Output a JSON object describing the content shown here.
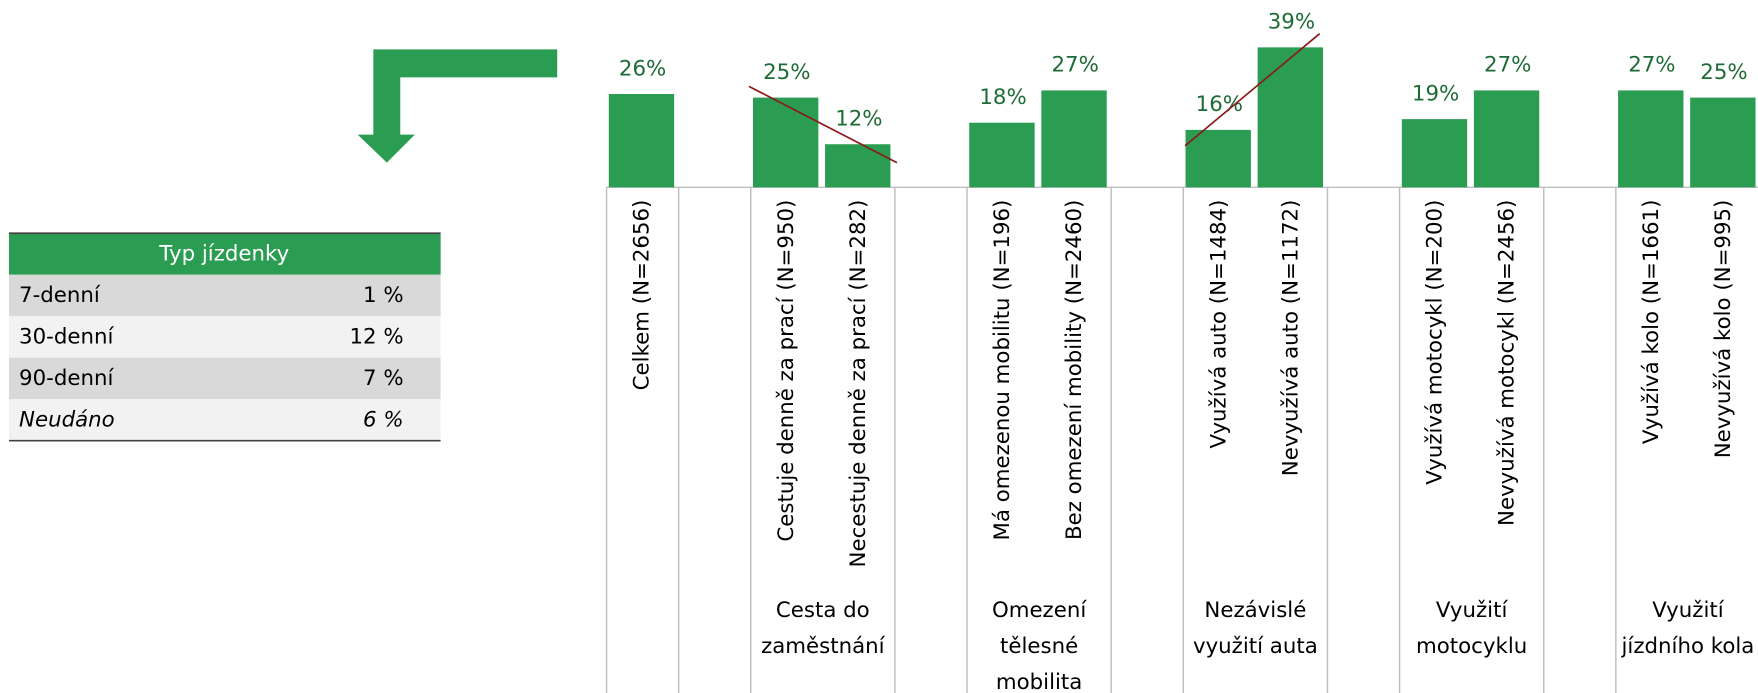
{
  "chart_data": {
    "type": "bar",
    "categories": [
      "Celkem (N=2656)",
      "Cestuje denně za prací (N=950)",
      "Necestuje denně za prací (N=282)",
      "Má omezenou mobilitu (N=196)",
      "Bez omezení mobility (N=2460)",
      "Využívá auto (N=1484)",
      "Nevyužívá auto (N=1172)",
      "Využívá motocykl (N=200)",
      "Nevyužívá motocykl (N=2456)",
      "Využívá kolo (N=1661)",
      "Nevyužívá kolo (N=995)"
    ],
    "values": [
      26,
      25,
      12,
      18,
      27,
      16,
      39,
      19,
      27,
      27,
      25
    ],
    "value_labels": [
      "26%",
      "25%",
      "12%",
      "18%",
      "27%",
      "16%",
      "39%",
      "19%",
      "27%",
      "27%",
      "25%"
    ],
    "color": "#2a9d52",
    "groups": [
      [
        "Cesta do",
        "zaměstnání"
      ],
      [
        "Omezení",
        "tělesné",
        "mobilita"
      ],
      [
        "Nezávislé",
        "využití auta"
      ],
      [
        "Využití",
        "motocyklu"
      ],
      [
        "Využití",
        "jízdního kola"
      ]
    ]
  },
  "table": {
    "header": "Typ jízdenky",
    "rows": [
      [
        "7-denní",
        "1 %"
      ],
      [
        "30-denní",
        "12 %"
      ],
      [
        "90-denní",
        "7 %"
      ],
      [
        "Neudáno",
        "6 %"
      ]
    ]
  }
}
